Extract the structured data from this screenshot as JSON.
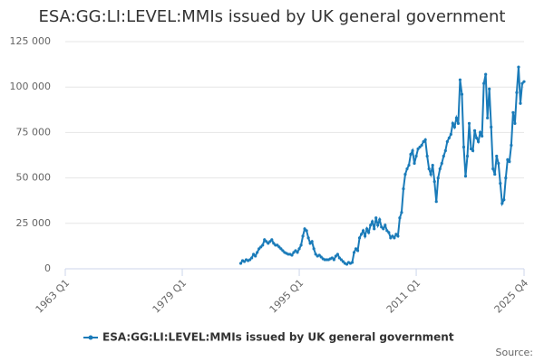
{
  "chart_data": {
    "type": "line",
    "title": "ESA:GG:LI:LEVEL:MMIs issued by UK general government",
    "source_label": "Source:",
    "x": [
      "1987 Q1",
      "1987 Q2",
      "1987 Q3",
      "1987 Q4",
      "1988 Q1",
      "1988 Q2",
      "1988 Q3",
      "1988 Q4",
      "1989 Q1",
      "1989 Q2",
      "1989 Q3",
      "1989 Q4",
      "1990 Q1",
      "1990 Q2",
      "1990 Q3",
      "1990 Q4",
      "1991 Q1",
      "1991 Q2",
      "1991 Q3",
      "1991 Q4",
      "1992 Q1",
      "1992 Q2",
      "1992 Q3",
      "1992 Q4",
      "1993 Q1",
      "1993 Q2",
      "1993 Q3",
      "1993 Q4",
      "1994 Q1",
      "1994 Q2",
      "1994 Q3",
      "1994 Q4",
      "1995 Q1",
      "1995 Q2",
      "1995 Q3",
      "1995 Q4",
      "1996 Q1",
      "1996 Q2",
      "1996 Q3",
      "1996 Q4",
      "1997 Q1",
      "1997 Q2",
      "1997 Q3",
      "1997 Q4",
      "1998 Q1",
      "1998 Q2",
      "1998 Q3",
      "1998 Q4",
      "1999 Q1",
      "1999 Q2",
      "1999 Q3",
      "1999 Q4",
      "2000 Q1",
      "2000 Q2",
      "2000 Q3",
      "2000 Q4",
      "2001 Q1",
      "2001 Q2",
      "2001 Q3",
      "2001 Q4",
      "2002 Q1",
      "2002 Q2",
      "2002 Q3",
      "2002 Q4",
      "2003 Q1",
      "2003 Q2",
      "2003 Q3",
      "2003 Q4",
      "2004 Q1",
      "2004 Q2",
      "2004 Q3",
      "2004 Q4",
      "2005 Q1",
      "2005 Q2",
      "2005 Q3",
      "2005 Q4",
      "2006 Q1",
      "2006 Q2",
      "2006 Q3",
      "2006 Q4",
      "2007 Q1",
      "2007 Q2",
      "2007 Q3",
      "2007 Q4",
      "2008 Q1",
      "2008 Q2",
      "2008 Q3",
      "2008 Q4",
      "2009 Q1",
      "2009 Q2",
      "2009 Q3",
      "2009 Q4",
      "2010 Q1",
      "2010 Q2",
      "2010 Q3",
      "2010 Q4",
      "2011 Q1",
      "2011 Q2",
      "2011 Q3",
      "2011 Q4",
      "2012 Q1",
      "2012 Q2",
      "2012 Q3",
      "2012 Q4",
      "2013 Q1",
      "2013 Q2",
      "2013 Q3",
      "2013 Q4",
      "2014 Q1",
      "2014 Q2",
      "2014 Q3",
      "2014 Q4",
      "2015 Q1",
      "2015 Q2",
      "2015 Q3",
      "2015 Q4",
      "2016 Q1",
      "2016 Q2",
      "2016 Q3",
      "2016 Q4",
      "2017 Q1",
      "2017 Q2",
      "2017 Q3",
      "2017 Q4",
      "2018 Q1",
      "2018 Q2",
      "2018 Q3",
      "2018 Q4",
      "2019 Q1",
      "2019 Q2",
      "2019 Q3",
      "2019 Q4",
      "2020 Q1",
      "2020 Q2",
      "2020 Q3",
      "2020 Q4",
      "2021 Q1",
      "2021 Q2",
      "2021 Q3",
      "2021 Q4",
      "2022 Q1",
      "2022 Q2",
      "2022 Q3",
      "2022 Q4",
      "2023 Q1",
      "2023 Q2",
      "2023 Q3",
      "2023 Q4",
      "2024 Q1",
      "2024 Q2",
      "2024 Q3",
      "2024 Q4",
      "2025 Q1",
      "2025 Q2",
      "2025 Q3",
      "2025 Q4"
    ],
    "series": [
      {
        "name": "ESA:GG:LI:LEVEL:MMIs issued by UK general government",
        "color": "#1a7bb9",
        "values": [
          3000,
          4500,
          4000,
          5000,
          4500,
          5000,
          6000,
          8000,
          7000,
          9000,
          11000,
          12000,
          13000,
          16000,
          15000,
          14000,
          15000,
          16000,
          14000,
          13000,
          13000,
          12000,
          11000,
          10000,
          9000,
          8500,
          8000,
          8000,
          7500,
          9000,
          10000,
          9000,
          11000,
          13000,
          18000,
          22000,
          21000,
          17000,
          14000,
          15000,
          11000,
          8000,
          7000,
          7500,
          6500,
          5500,
          5000,
          5000,
          5000,
          5500,
          6000,
          5000,
          7000,
          8000,
          6000,
          5000,
          4000,
          3000,
          2500,
          3500,
          3000,
          3500,
          9000,
          11000,
          10000,
          17000,
          19000,
          21000,
          18000,
          22000,
          20000,
          24000,
          26000,
          22000,
          28000,
          24000,
          27000,
          23000,
          22000,
          24000,
          21000,
          20000,
          17000,
          18000,
          17000,
          19000,
          18000,
          28000,
          31000,
          44000,
          52000,
          55000,
          57000,
          63000,
          65000,
          58000,
          62000,
          66000,
          67000,
          68000,
          70000,
          71000,
          62000,
          55000,
          52000,
          57000,
          48000,
          37000,
          50000,
          55000,
          58000,
          62000,
          65000,
          70000,
          72000,
          74000,
          80000,
          78000,
          83000,
          80000,
          104000,
          96000,
          67000,
          51000,
          62000,
          80000,
          66000,
          65000,
          76000,
          72000,
          70000,
          75000,
          73000,
          102000,
          107000,
          83000,
          99000,
          78000,
          55000,
          52000,
          62000,
          58000,
          47000,
          36000,
          38000,
          50000,
          60000,
          59000,
          68000,
          86000,
          80000,
          97000,
          111000,
          91000,
          102000,
          103000
        ]
      }
    ],
    "xlim": [
      "1963 Q1",
      "2025 Q4"
    ],
    "xticks": [
      "1963 Q1",
      "1979 Q1",
      "1995 Q1",
      "2011 Q1",
      "2025 Q4"
    ],
    "ylim": [
      0,
      125000
    ],
    "yticks": [
      0,
      {
        "value": 25000,
        "label": "25 000"
      },
      {
        "value": 50000,
        "label": "50 000"
      },
      {
        "value": 75000,
        "label": "75 000"
      },
      {
        "value": 100000,
        "label": "100 000"
      },
      {
        "value": 125000,
        "label": "125 000"
      }
    ],
    "grid": true,
    "legend": "bottom"
  }
}
